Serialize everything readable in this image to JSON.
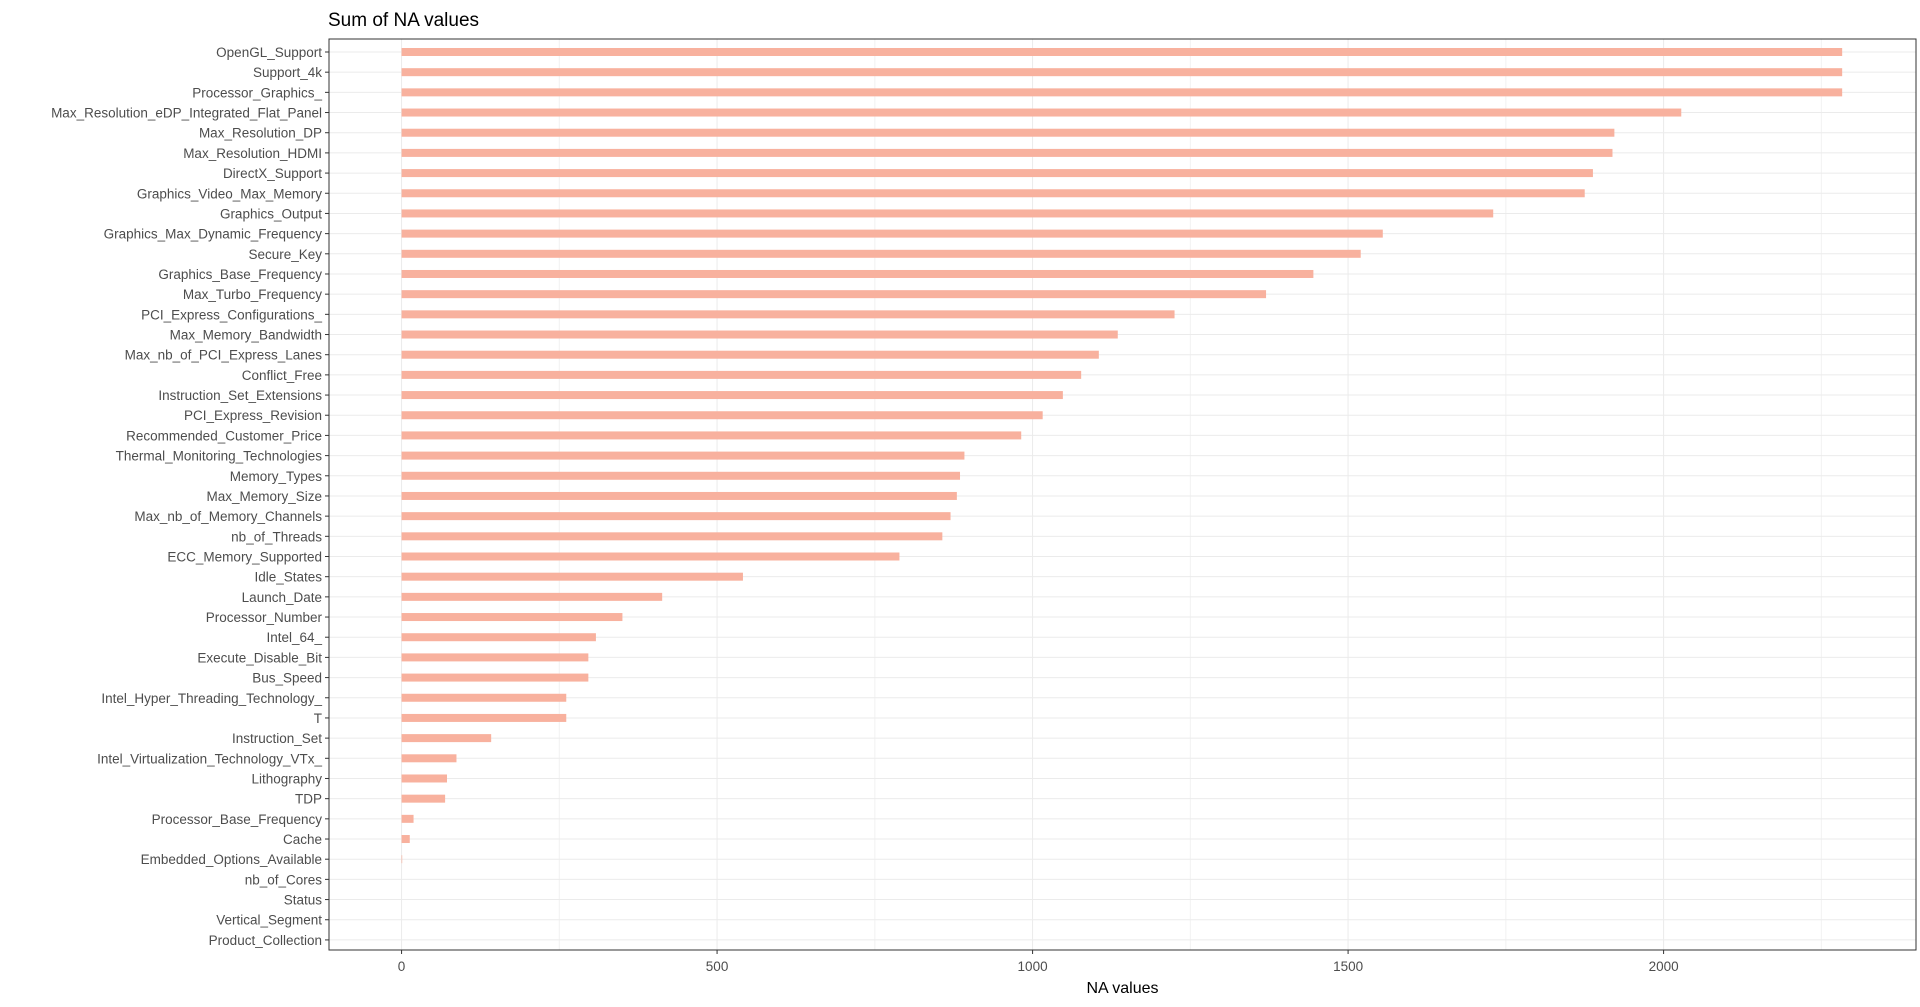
{
  "chart_data": {
    "type": "bar",
    "orientation": "horizontal",
    "title": "Sum of NA values",
    "xlabel": "NA values",
    "ylabel": "",
    "xlim": [
      -115,
      2400
    ],
    "xticks": [
      0,
      500,
      1000,
      1500,
      2000
    ],
    "xtick_labels": [
      "0",
      "500",
      "1000",
      "1500",
      "2000"
    ],
    "grid": true,
    "bar_color": "#F8B19E",
    "categories": [
      "OpenGL_Support",
      "Support_4k",
      "Processor_Graphics_",
      "Max_Resolution_eDP_Integrated_Flat_Panel",
      "Max_Resolution_DP",
      "Max_Resolution_HDMI",
      "DirectX_Support",
      "Graphics_Video_Max_Memory",
      "Graphics_Output",
      "Graphics_Max_Dynamic_Frequency",
      "Secure_Key",
      "Graphics_Base_Frequency",
      "Max_Turbo_Frequency",
      "PCI_Express_Configurations_",
      "Max_Memory_Bandwidth",
      "Max_nb_of_PCI_Express_Lanes",
      "Conflict_Free",
      "Instruction_Set_Extensions",
      "PCI_Express_Revision",
      "Recommended_Customer_Price",
      "Thermal_Monitoring_Technologies",
      "Memory_Types",
      "Max_Memory_Size",
      "Max_nb_of_Memory_Channels",
      "nb_of_Threads",
      "ECC_Memory_Supported",
      "Idle_States",
      "Launch_Date",
      "Processor_Number",
      "Intel_64_",
      "Execute_Disable_Bit",
      "Bus_Speed",
      "Intel_Hyper_Threading_Technology_",
      "T",
      "Instruction_Set",
      "Intel_Virtualization_Technology_VTx_",
      "Lithography",
      "TDP",
      "Processor_Base_Frequency",
      "Cache",
      "Embedded_Options_Available",
      "nb_of_Cores",
      "Status",
      "Vertical_Segment",
      "Product_Collection"
    ],
    "values": [
      2283,
      2283,
      2283,
      2028,
      1922,
      1919,
      1888,
      1875,
      1730,
      1555,
      1520,
      1445,
      1370,
      1225,
      1135,
      1105,
      1077,
      1048,
      1016,
      982,
      892,
      885,
      880,
      870,
      857,
      789,
      541,
      413,
      350,
      308,
      296,
      296,
      261,
      261,
      142,
      87,
      72,
      69,
      19,
      13,
      1,
      0,
      0,
      0,
      0
    ]
  }
}
